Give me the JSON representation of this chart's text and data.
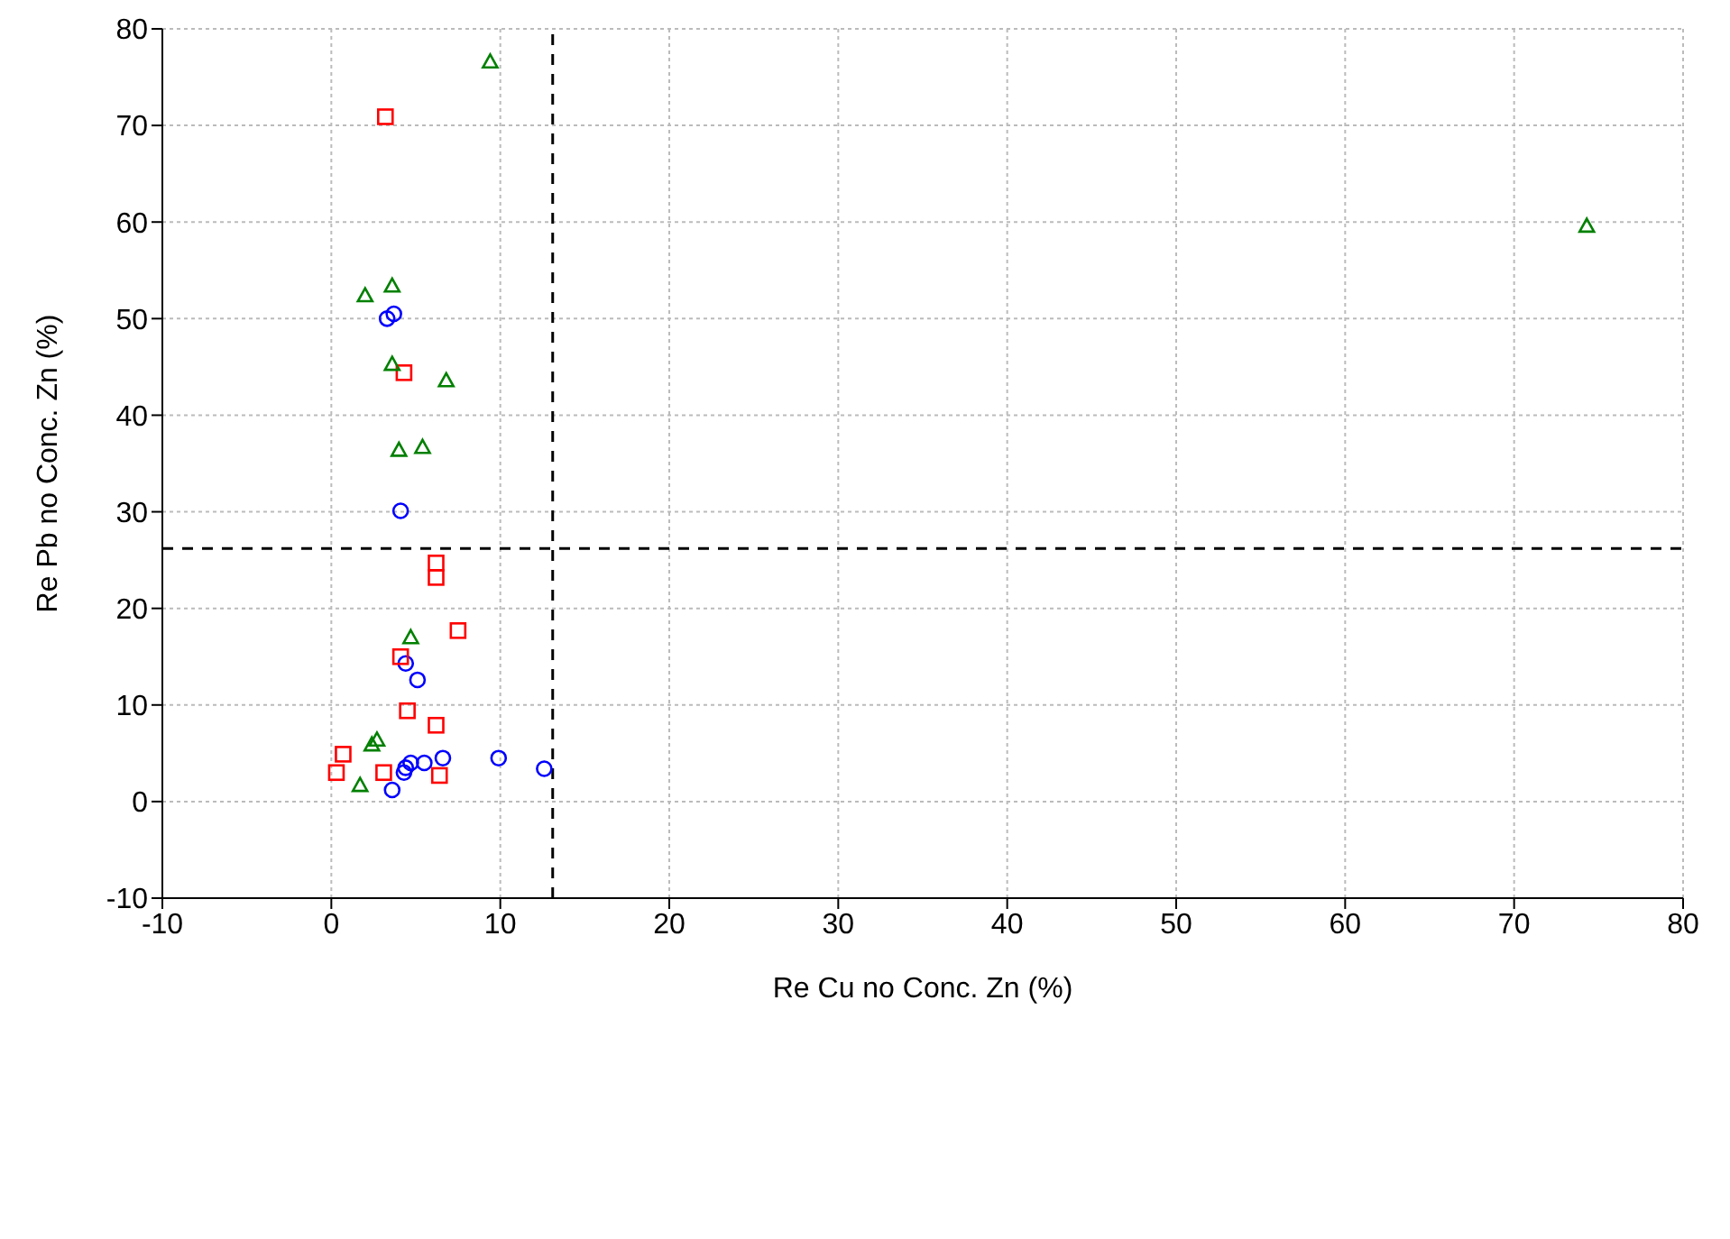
{
  "chart_data": {
    "type": "scatter",
    "xlabel": "Re Cu no Conc. Zn (%)",
    "ylabel": "Re Pb no Conc. Zn (%)",
    "xlim": [
      -10,
      80
    ],
    "xticks": [
      -10,
      0,
      10,
      20,
      30,
      40,
      50,
      60,
      70,
      80
    ],
    "ylim": [
      -10,
      80
    ],
    "yticks": [
      -10,
      0,
      10,
      20,
      30,
      40,
      50,
      60,
      70,
      80
    ],
    "grid": true,
    "legend": false,
    "series": [
      {
        "color": "#0000ff",
        "marker": "circle",
        "x": [
          3.3,
          3.7,
          4.1,
          4.4,
          5.1,
          3.6,
          4.4,
          4.7,
          5.5,
          6.6,
          9.9,
          12.6,
          4.3
        ],
        "values": [
          50.0,
          50.5,
          30.1,
          14.3,
          12.6,
          1.2,
          3.5,
          4.0,
          4.0,
          4.5,
          4.5,
          3.4,
          3.0
        ]
      },
      {
        "color": "#ff0000",
        "marker": "square",
        "x": [
          3.2,
          4.3,
          6.2,
          6.2,
          7.5,
          4.1,
          4.5,
          6.2,
          0.7,
          0.3,
          3.1,
          6.4
        ],
        "values": [
          70.9,
          44.4,
          24.7,
          23.2,
          17.7,
          15.0,
          9.4,
          7.9,
          4.9,
          3.0,
          3.0,
          2.7
        ]
      },
      {
        "color": "#008000",
        "marker": "triangle",
        "x": [
          9.4,
          74.3,
          2.0,
          3.6,
          3.6,
          6.8,
          4.0,
          5.4,
          4.7,
          2.4,
          2.7,
          1.7
        ],
        "values": [
          76.6,
          59.6,
          52.4,
          53.4,
          45.3,
          43.6,
          36.4,
          36.7,
          17.0,
          5.9,
          6.4,
          1.7
        ]
      }
    ],
    "ref_lines": [
      {
        "axis": "x",
        "value": 13.1,
        "line_style": "dashed"
      },
      {
        "axis": "y",
        "value": 26.2,
        "line_style": "dashed"
      }
    ]
  }
}
